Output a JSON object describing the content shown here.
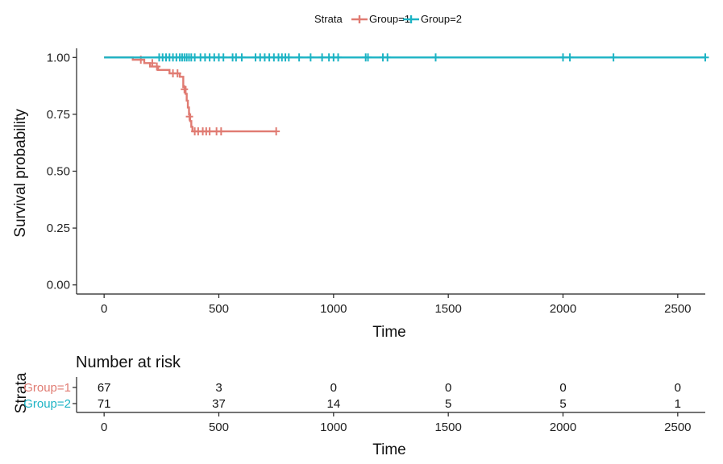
{
  "chart_data": [
    {
      "type": "line",
      "subtype": "kaplan-meier",
      "title": "",
      "xlabel": "Time",
      "ylabel": "Survival probability",
      "xlim": [
        -120,
        2620
      ],
      "ylim": [
        -0.04,
        1.04
      ],
      "xticks": [
        "0",
        "500",
        "1000",
        "1500",
        "2000",
        "2500"
      ],
      "yticks": [
        "0.00",
        "0.25",
        "0.50",
        "0.75",
        "1.00"
      ],
      "grid": false,
      "legend": {
        "title": "Strata",
        "position": "top"
      },
      "series": [
        {
          "name": "Group=1",
          "color": "#E07B72",
          "steps": [
            [
              0,
              1.0
            ],
            [
              125,
              0.99
            ],
            [
              175,
              0.975
            ],
            [
              200,
              0.96
            ],
            [
              235,
              0.945
            ],
            [
              285,
              0.93
            ],
            [
              330,
              0.915
            ],
            [
              345,
              0.87
            ],
            [
              355,
              0.84
            ],
            [
              360,
              0.81
            ],
            [
              365,
              0.78
            ],
            [
              370,
              0.75
            ],
            [
              375,
              0.72
            ],
            [
              380,
              0.695
            ],
            [
              385,
              0.675
            ],
            [
              750,
              0.675
            ]
          ],
          "censor": [
            [
              160,
              0.99
            ],
            [
              210,
              0.975
            ],
            [
              230,
              0.96
            ],
            [
              300,
              0.93
            ],
            [
              320,
              0.93
            ],
            [
              350,
              0.86
            ],
            [
              372,
              0.74
            ],
            [
              395,
              0.675
            ],
            [
              410,
              0.675
            ],
            [
              430,
              0.675
            ],
            [
              445,
              0.675
            ],
            [
              460,
              0.675
            ],
            [
              490,
              0.675
            ],
            [
              510,
              0.675
            ],
            [
              750,
              0.675
            ]
          ]
        },
        {
          "name": "Group=2",
          "color": "#1CB3C4",
          "steps": [
            [
              0,
              1.0
            ],
            [
              2620,
              1.0
            ]
          ],
          "censor": [
            [
              240,
              1
            ],
            [
              255,
              1
            ],
            [
              270,
              1
            ],
            [
              285,
              1
            ],
            [
              300,
              1
            ],
            [
              315,
              1
            ],
            [
              330,
              1
            ],
            [
              340,
              1
            ],
            [
              350,
              1
            ],
            [
              360,
              1
            ],
            [
              370,
              1
            ],
            [
              380,
              1
            ],
            [
              395,
              1
            ],
            [
              420,
              1
            ],
            [
              440,
              1
            ],
            [
              460,
              1
            ],
            [
              480,
              1
            ],
            [
              500,
              1
            ],
            [
              520,
              1
            ],
            [
              560,
              1
            ],
            [
              575,
              1
            ],
            [
              600,
              1
            ],
            [
              660,
              1
            ],
            [
              680,
              1
            ],
            [
              700,
              1
            ],
            [
              720,
              1
            ],
            [
              740,
              1
            ],
            [
              760,
              1
            ],
            [
              775,
              1
            ],
            [
              790,
              1
            ],
            [
              805,
              1
            ],
            [
              850,
              1
            ],
            [
              900,
              1
            ],
            [
              950,
              1
            ],
            [
              980,
              1
            ],
            [
              1000,
              1
            ],
            [
              1020,
              1
            ],
            [
              1140,
              1
            ],
            [
              1150,
              1
            ],
            [
              1215,
              1
            ],
            [
              1235,
              1
            ],
            [
              1445,
              1
            ],
            [
              2000,
              1
            ],
            [
              2030,
              1
            ],
            [
              2220,
              1
            ],
            [
              2620,
              1
            ]
          ]
        }
      ]
    },
    {
      "type": "table",
      "title": "Number at risk",
      "xlabel": "Time",
      "ylabel": "Strata",
      "times": [
        0,
        500,
        1000,
        1500,
        2000,
        2500
      ],
      "xticks": [
        "0",
        "500",
        "1000",
        "1500",
        "2000",
        "2500"
      ],
      "rows": [
        {
          "label": "Group=1",
          "color": "#E07B72",
          "values": [
            "67",
            "3",
            "0",
            "0",
            "0",
            "0"
          ]
        },
        {
          "label": "Group=2",
          "color": "#1CB3C4",
          "values": [
            "71",
            "37",
            "14",
            "5",
            "5",
            "1"
          ]
        }
      ]
    }
  ]
}
